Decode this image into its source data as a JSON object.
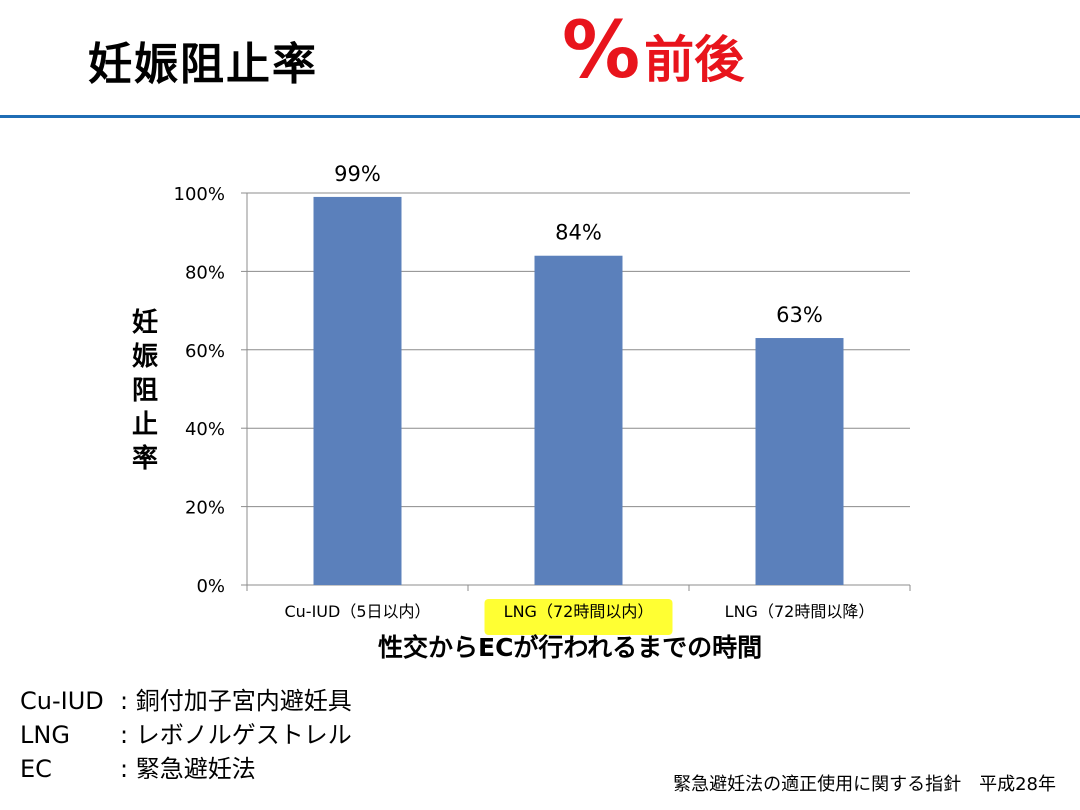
{
  "header": {
    "title": "妊娠阻止率",
    "title_pct": "%",
    "title_after": "前後",
    "accent_color": "#e8141c",
    "rule_color": "#1f6db5"
  },
  "chart_data": {
    "type": "bar",
    "categories": [
      "Cu-IUD（5日以内）",
      "LNG（72時間以内）",
      "LNG（72時間以降）"
    ],
    "values": [
      99,
      84,
      63
    ],
    "data_labels": [
      "99%",
      "84%",
      "63%"
    ],
    "ylabel": "妊娠阻止率",
    "xlabel": "性交からECが行われるまでの時間",
    "ylim": [
      0,
      100
    ],
    "yticks": [
      "0%",
      "20%",
      "40%",
      "60%",
      "80%",
      "100%"
    ],
    "grid": true,
    "bar_color": "#5b80bb",
    "highlighted_category_index": 1,
    "highlight_color": "#ffff33"
  },
  "legend": [
    {
      "key": "Cu-IUD",
      "sep": ": ",
      "value": "銅付加子宮内避妊具"
    },
    {
      "key": "LNG",
      "sep": ": ",
      "value": "レボノルゲストレル"
    },
    {
      "key": "EC",
      "sep": ": ",
      "value": "緊急避妊法"
    }
  ],
  "source": "緊急避妊法の適正使用に関する指針　平成28年"
}
